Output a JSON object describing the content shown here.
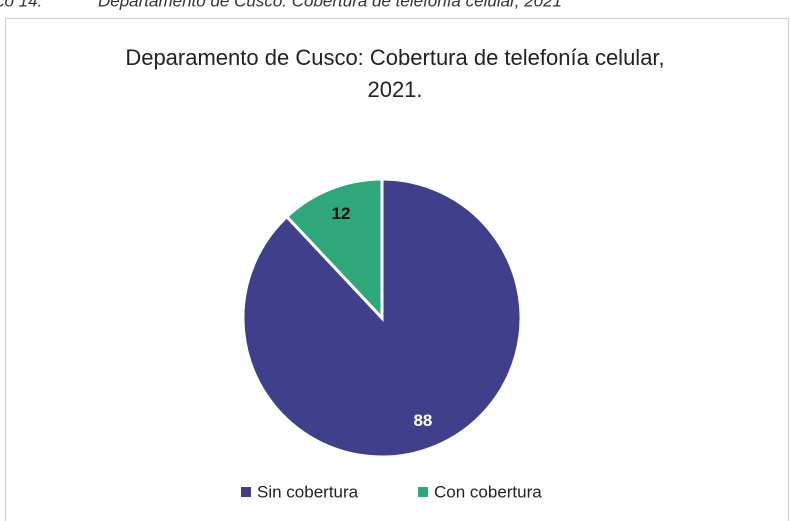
{
  "caption": {
    "number": "co 14.",
    "text": "Departamento de Cusco: Cobertura de telefonía celular, 2021"
  },
  "chart_data": {
    "type": "pie",
    "title": "Deparamento de Cusco: Cobertura de telefonía celular, 2021.",
    "categories": [
      "Sin cobertura",
      "Con cobertura"
    ],
    "values": [
      88,
      12
    ],
    "colors": [
      "#3f3f8c",
      "#2ea77a"
    ],
    "legend": "bottom"
  }
}
